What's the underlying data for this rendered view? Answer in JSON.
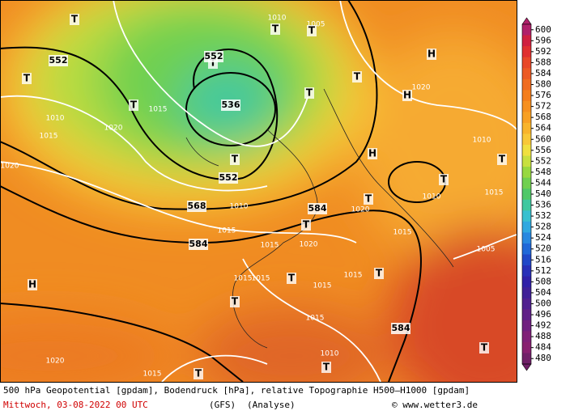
{
  "footer": {
    "description": "500 hPa Geopotential [gpdam], Bodendruck [hPa], relative Topographie H500—H1000 [gpdam]",
    "date": "Mittwoch, 03-08-2022  00 UTC",
    "model": "(GFS)",
    "run": "(Analyse)",
    "credit": "© www.wetter3.de"
  },
  "map_labels": [
    "H",
    "H",
    "H",
    "H",
    "T",
    "T",
    "T",
    "T",
    "T",
    "T",
    "T",
    "T",
    "T",
    "T",
    "T",
    "T",
    "T",
    "T",
    "T",
    "T",
    "T",
    "T",
    "T",
    "552",
    "552",
    "536",
    "552",
    "568",
    "584",
    "584",
    "584",
    "1020",
    "1015",
    "1020",
    "1010",
    "1015",
    "1020",
    "1005",
    "1010",
    "1010",
    "1015",
    "1015",
    "1020",
    "1020",
    "1015",
    "1015",
    "1015",
    "1015",
    "1015",
    "1015",
    "1010",
    "1020",
    "1015",
    "1015",
    "1010",
    "1010",
    "1005"
  ],
  "colorbar": {
    "labels": [
      "600",
      "596",
      "592",
      "588",
      "584",
      "580",
      "576",
      "572",
      "568",
      "564",
      "560",
      "556",
      "552",
      "548",
      "544",
      "540",
      "536",
      "532",
      "528",
      "524",
      "520",
      "516",
      "512",
      "508",
      "504",
      "500",
      "496",
      "492",
      "488",
      "484",
      "480"
    ],
    "colors": [
      "#b0206a",
      "#d02040",
      "#e03030",
      "#e84828",
      "#ec5a24",
      "#f06c20",
      "#f47e1c",
      "#f69020",
      "#f8a024",
      "#f8b42c",
      "#f8c838",
      "#f0e040",
      "#c8e040",
      "#98d840",
      "#70d050",
      "#50c868",
      "#40c8a0",
      "#38c0d0",
      "#30a8e0",
      "#2888e0",
      "#2068d8",
      "#2048c8",
      "#2830b8",
      "#3020a8",
      "#402098",
      "#502090",
      "#602088",
      "#702080",
      "#802078",
      "#882070",
      "#702068"
    ]
  }
}
